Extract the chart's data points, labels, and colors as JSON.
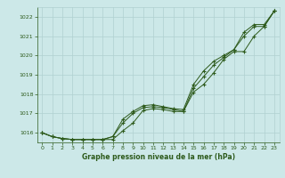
{
  "x": [
    0,
    1,
    2,
    3,
    4,
    5,
    6,
    7,
    8,
    9,
    10,
    11,
    12,
    13,
    14,
    15,
    16,
    17,
    18,
    19,
    20,
    21,
    22,
    23
  ],
  "line1": [
    1016.0,
    1015.8,
    1015.7,
    1015.65,
    1015.65,
    1015.65,
    1015.65,
    1015.65,
    1016.1,
    1016.5,
    1017.15,
    1017.25,
    1017.2,
    1017.1,
    1017.1,
    1018.1,
    1018.5,
    1019.1,
    1019.8,
    1020.2,
    1020.2,
    1021.0,
    1021.5,
    1022.3
  ],
  "line2": [
    1016.0,
    1015.8,
    1015.7,
    1015.65,
    1015.65,
    1015.65,
    1015.65,
    1015.8,
    1016.5,
    1017.0,
    1017.3,
    1017.35,
    1017.3,
    1017.2,
    1017.1,
    1018.3,
    1018.9,
    1019.5,
    1019.9,
    1020.3,
    1021.0,
    1021.5,
    1021.5,
    1022.3
  ],
  "line3": [
    1016.0,
    1015.8,
    1015.7,
    1015.65,
    1015.65,
    1015.65,
    1015.65,
    1015.8,
    1016.7,
    1017.1,
    1017.4,
    1017.45,
    1017.35,
    1017.25,
    1017.2,
    1018.5,
    1019.2,
    1019.7,
    1020.0,
    1020.3,
    1021.2,
    1021.6,
    1021.6,
    1022.3
  ],
  "ylim": [
    1015.5,
    1022.5
  ],
  "yticks": [
    1016,
    1017,
    1018,
    1019,
    1020,
    1021,
    1022
  ],
  "xticks": [
    0,
    1,
    2,
    3,
    4,
    5,
    6,
    7,
    8,
    9,
    10,
    11,
    12,
    13,
    14,
    15,
    16,
    17,
    18,
    19,
    20,
    21,
    22,
    23
  ],
  "line_color": "#2d5a1b",
  "bg_color": "#cce8e8",
  "grid_color": "#b0d0d0",
  "xlabel": "Graphe pression niveau de la mer (hPa)",
  "xlabel_color": "#2d5a1b",
  "tick_color": "#2d5a1b",
  "marker": "+"
}
